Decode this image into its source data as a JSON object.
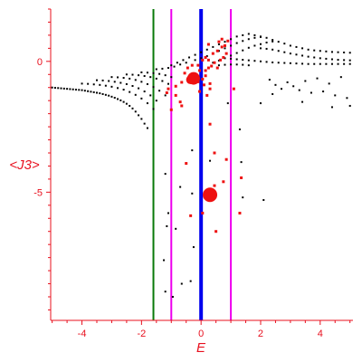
{
  "chart_data": {
    "type": "scatter",
    "title": "",
    "xlabel": "E",
    "ylabel": "<J3>",
    "xlim": [
      -5.05,
      5.1
    ],
    "ylim": [
      -9.9,
      2.0
    ],
    "xticks": [
      -4,
      -2,
      0,
      2,
      4
    ],
    "xtick_labels": [
      "-4",
      "-2",
      "0",
      "2",
      "4"
    ],
    "yticks": [
      0,
      -5
    ],
    "ytick_labels": [
      "0",
      "-5"
    ],
    "grid": false,
    "colors": {
      "axis": "#e8101e",
      "dots": "#000000",
      "red_points": "#ee1111",
      "line_green": "#0a7a0a",
      "line_magenta": "#ee00ee",
      "line_blue": "#0000ee"
    },
    "vertical_lines": [
      {
        "x": -1.6,
        "color": "#0a7a0a",
        "width": 2
      },
      {
        "x": -1.0,
        "color": "#ee00ee",
        "width": 2
      },
      {
        "x": 0.0,
        "color": "#0000ee",
        "width": 4
      },
      {
        "x": 1.0,
        "color": "#ee00ee",
        "width": 2
      }
    ],
    "series": [
      {
        "color": "#000000",
        "points": [
          [
            -5.0,
            -1.0
          ],
          [
            -4.9,
            -1.01
          ],
          [
            -4.8,
            -1.02
          ],
          [
            -4.7,
            -1.03
          ],
          [
            -4.6,
            -1.04
          ],
          [
            -4.5,
            -1.05
          ],
          [
            -4.4,
            -1.06
          ],
          [
            -4.3,
            -1.07
          ],
          [
            -4.2,
            -1.08
          ],
          [
            -4.1,
            -1.09
          ],
          [
            -4.0,
            -1.1
          ],
          [
            -3.9,
            -1.12
          ],
          [
            -3.8,
            -1.14
          ],
          [
            -3.7,
            -1.16
          ],
          [
            -3.6,
            -1.18
          ],
          [
            -3.5,
            -1.2
          ],
          [
            -3.4,
            -1.22
          ],
          [
            -3.3,
            -1.25
          ],
          [
            -3.2,
            -1.28
          ],
          [
            -3.1,
            -1.31
          ],
          [
            -3.0,
            -1.35
          ],
          [
            -2.9,
            -1.39
          ],
          [
            -2.8,
            -1.44
          ],
          [
            -2.7,
            -1.49
          ],
          [
            -2.6,
            -1.55
          ],
          [
            -2.5,
            -1.62
          ],
          [
            -2.4,
            -1.7
          ],
          [
            -2.3,
            -1.8
          ],
          [
            -2.2,
            -1.92
          ],
          [
            -2.1,
            -2.06
          ],
          [
            -2.0,
            -2.2
          ],
          [
            -1.9,
            -2.38
          ],
          [
            -1.8,
            -2.55
          ],
          [
            -4.0,
            -0.85
          ],
          [
            -3.8,
            -0.86
          ],
          [
            -3.6,
            -0.88
          ],
          [
            -3.4,
            -0.9
          ],
          [
            -3.2,
            -0.93
          ],
          [
            -3.0,
            -0.97
          ],
          [
            -2.8,
            -1.02
          ],
          [
            -2.6,
            -1.08
          ],
          [
            -2.4,
            -1.17
          ],
          [
            -2.2,
            -1.28
          ],
          [
            -2.0,
            -1.42
          ],
          [
            -1.8,
            -1.6
          ],
          [
            -1.6,
            -1.82
          ],
          [
            -3.5,
            -0.72
          ],
          [
            -3.3,
            -0.73
          ],
          [
            -3.1,
            -0.75
          ],
          [
            -2.9,
            -0.78
          ],
          [
            -2.7,
            -0.82
          ],
          [
            -2.5,
            -0.87
          ],
          [
            -2.3,
            -0.94
          ],
          [
            -2.1,
            -1.03
          ],
          [
            -1.9,
            -1.15
          ],
          [
            -1.7,
            -1.3
          ],
          [
            -1.5,
            -1.5
          ],
          [
            -3.0,
            -0.6
          ],
          [
            -2.8,
            -0.61
          ],
          [
            -2.6,
            -0.63
          ],
          [
            -2.4,
            -0.66
          ],
          [
            -2.2,
            -0.71
          ],
          [
            -2.0,
            -0.78
          ],
          [
            -1.8,
            -0.87
          ],
          [
            -1.6,
            -0.98
          ],
          [
            -1.4,
            -1.12
          ],
          [
            -1.2,
            -1.3
          ],
          [
            -2.5,
            -0.5
          ],
          [
            -2.3,
            -0.51
          ],
          [
            -2.1,
            -0.53
          ],
          [
            -1.9,
            -0.56
          ],
          [
            -1.7,
            -0.6
          ],
          [
            -1.5,
            -0.66
          ],
          [
            -1.3,
            -0.75
          ],
          [
            -1.1,
            -0.86
          ],
          [
            -2.0,
            -0.42
          ],
          [
            -1.8,
            -0.43
          ],
          [
            -1.6,
            -0.45
          ],
          [
            -1.4,
            -0.48
          ],
          [
            -1.2,
            -0.53
          ],
          [
            -1.0,
            -0.6
          ],
          [
            -1.5,
            -0.3
          ],
          [
            -1.3,
            -0.28
          ],
          [
            -1.1,
            -0.25
          ],
          [
            -0.9,
            -0.2
          ],
          [
            -0.7,
            -0.12
          ],
          [
            -0.5,
            -0.05
          ],
          [
            -1.0,
            -0.15
          ],
          [
            -0.8,
            -0.05
          ],
          [
            -0.6,
            0.05
          ],
          [
            -0.4,
            0.15
          ],
          [
            -0.2,
            0.25
          ],
          [
            0.0,
            0.35
          ],
          [
            0.2,
            0.45
          ],
          [
            0.4,
            0.55
          ],
          [
            0.6,
            0.65
          ],
          [
            0.8,
            0.75
          ],
          [
            1.0,
            0.85
          ],
          [
            -0.2,
            0.05
          ],
          [
            0.0,
            0.12
          ],
          [
            0.2,
            0.2
          ],
          [
            0.4,
            0.3
          ],
          [
            0.6,
            0.4
          ],
          [
            0.8,
            0.5
          ],
          [
            1.0,
            0.6
          ],
          [
            1.2,
            0.7
          ],
          [
            1.4,
            0.78
          ],
          [
            1.6,
            0.85
          ],
          [
            1.8,
            0.9
          ],
          [
            2.0,
            0.93
          ],
          [
            0.4,
            -0.05
          ],
          [
            0.6,
            0.03
          ],
          [
            0.8,
            0.12
          ],
          [
            1.0,
            0.22
          ],
          [
            1.2,
            0.32
          ],
          [
            1.4,
            0.42
          ],
          [
            1.6,
            0.52
          ],
          [
            1.8,
            0.6
          ],
          [
            2.0,
            0.66
          ],
          [
            2.2,
            0.72
          ],
          [
            2.4,
            0.76
          ],
          [
            1.2,
            0.95
          ],
          [
            1.4,
            1.0
          ],
          [
            1.6,
            1.05
          ],
          [
            1.8,
            1.0
          ],
          [
            2.0,
            0.95
          ],
          [
            2.2,
            0.9
          ],
          [
            2.4,
            0.82
          ],
          [
            2.6,
            0.75
          ],
          [
            2.8,
            0.68
          ],
          [
            3.0,
            0.6
          ],
          [
            3.2,
            0.55
          ],
          [
            3.4,
            0.5
          ],
          [
            3.6,
            0.45
          ],
          [
            3.8,
            0.42
          ],
          [
            4.0,
            0.4
          ],
          [
            4.2,
            0.38
          ],
          [
            4.4,
            0.36
          ],
          [
            4.6,
            0.35
          ],
          [
            4.8,
            0.34
          ],
          [
            5.0,
            0.33
          ],
          [
            2.0,
            0.5
          ],
          [
            2.2,
            0.48
          ],
          [
            2.4,
            0.45
          ],
          [
            2.6,
            0.4
          ],
          [
            2.8,
            0.35
          ],
          [
            3.0,
            0.3
          ],
          [
            3.2,
            0.26
          ],
          [
            3.4,
            0.22
          ],
          [
            3.6,
            0.18
          ],
          [
            3.8,
            0.15
          ],
          [
            4.0,
            0.12
          ],
          [
            4.2,
            0.1
          ],
          [
            4.4,
            0.08
          ],
          [
            4.6,
            0.06
          ],
          [
            4.8,
            0.05
          ],
          [
            5.0,
            0.04
          ],
          [
            1.0,
            0.1
          ],
          [
            1.2,
            0.08
          ],
          [
            1.4,
            0.06
          ],
          [
            1.6,
            0.04
          ],
          [
            1.8,
            0.02
          ],
          [
            2.0,
            0.0
          ],
          [
            2.2,
            -0.02
          ],
          [
            2.4,
            -0.04
          ],
          [
            2.6,
            -0.05
          ],
          [
            2.8,
            -0.06
          ],
          [
            3.0,
            -0.07
          ],
          [
            3.2,
            -0.08
          ],
          [
            3.4,
            -0.09
          ],
          [
            3.6,
            -0.1
          ],
          [
            3.8,
            -0.1
          ],
          [
            4.0,
            -0.1
          ],
          [
            4.2,
            -0.1
          ],
          [
            4.4,
            -0.1
          ],
          [
            4.6,
            -0.1
          ],
          [
            4.8,
            -0.1
          ],
          [
            5.0,
            -0.1
          ],
          [
            0.6,
            -0.15
          ],
          [
            0.8,
            -0.13
          ],
          [
            1.0,
            -0.12
          ],
          [
            1.2,
            -0.12
          ],
          [
            1.4,
            -0.13
          ],
          [
            1.6,
            -0.15
          ],
          [
            2.3,
            -0.7
          ],
          [
            2.5,
            -0.9
          ],
          [
            2.7,
            -1.05
          ],
          [
            2.9,
            -0.8
          ],
          [
            3.1,
            -0.95
          ],
          [
            3.3,
            -1.1
          ],
          [
            3.5,
            -0.75
          ],
          [
            3.7,
            -1.2
          ],
          [
            3.9,
            -0.65
          ],
          [
            4.1,
            -1.15
          ],
          [
            4.3,
            -0.85
          ],
          [
            4.5,
            -1.3
          ],
          [
            4.7,
            -0.6
          ],
          [
            4.9,
            -1.4
          ],
          [
            5.0,
            -1.7
          ],
          [
            4.4,
            -1.75
          ],
          [
            3.4,
            -1.55
          ],
          [
            2.4,
            -1.25
          ],
          [
            -1.2,
            -4.3
          ],
          [
            -1.1,
            -5.8
          ],
          [
            -1.15,
            -6.3
          ],
          [
            -1.25,
            -7.6
          ],
          [
            -1.2,
            -8.8
          ],
          [
            -0.85,
            -6.4
          ],
          [
            -0.95,
            -9.0
          ],
          [
            -0.7,
            -4.8
          ],
          [
            -0.65,
            -8.5
          ],
          [
            -0.35,
            -8.4
          ],
          [
            -0.3,
            -5.05
          ],
          [
            -0.3,
            -3.4
          ],
          [
            -0.25,
            -7.1
          ],
          [
            0.3,
            -3.8
          ],
          [
            0.9,
            -1.6
          ],
          [
            1.3,
            -2.6
          ],
          [
            1.35,
            -3.85
          ],
          [
            1.4,
            -5.2
          ],
          [
            2.0,
            -1.6
          ],
          [
            2.1,
            -5.3
          ]
        ]
      },
      {
        "color": "#ee1111",
        "points": [
          [
            -0.05,
            -0.35
          ],
          [
            0.15,
            -0.35
          ],
          [
            0.25,
            -0.25
          ],
          [
            0.35,
            -0.18
          ],
          [
            0.55,
            -0.25
          ],
          [
            0.45,
            -0.05
          ],
          [
            0.65,
            0.05
          ],
          [
            0.75,
            0.15
          ],
          [
            0.85,
            0.3
          ],
          [
            0.4,
            0.3
          ],
          [
            0.55,
            0.4
          ],
          [
            0.7,
            0.55
          ],
          [
            0.8,
            0.6
          ],
          [
            0.25,
            0.65
          ],
          [
            0.6,
            0.75
          ],
          [
            0.7,
            0.85
          ],
          [
            0.9,
            0.78
          ],
          [
            0.15,
            0.15
          ],
          [
            0.25,
            0.05
          ],
          [
            0.05,
            0.05
          ],
          [
            -0.1,
            -0.15
          ],
          [
            -0.45,
            -0.25
          ],
          [
            -0.3,
            -0.15
          ],
          [
            -0.55,
            -0.45
          ],
          [
            -0.25,
            -0.5
          ],
          [
            -0.15,
            -0.6
          ],
          [
            -0.35,
            -0.7
          ],
          [
            -0.1,
            -0.78
          ],
          [
            0.05,
            -0.68
          ],
          [
            0.15,
            -0.55
          ],
          [
            0.3,
            -0.85
          ],
          [
            -0.4,
            -0.75
          ],
          [
            -0.65,
            -0.8
          ],
          [
            -0.85,
            -0.95
          ],
          [
            -1.1,
            -1.05
          ],
          [
            -1.15,
            -1.2
          ],
          [
            -0.85,
            -1.3
          ],
          [
            -0.7,
            -1.55
          ],
          [
            -0.65,
            -1.7
          ],
          [
            -1.0,
            -1.85
          ],
          [
            0.1,
            -0.9
          ],
          [
            0.3,
            -1.05
          ],
          [
            -0.05,
            -1.15
          ],
          [
            0.2,
            -1.3
          ],
          [
            1.1,
            -1.05
          ],
          [
            0.3,
            -2.4
          ],
          [
            0.45,
            -3.5
          ],
          [
            -0.5,
            -3.9
          ],
          [
            0.85,
            -3.75
          ],
          [
            1.35,
            -4.45
          ],
          [
            0.75,
            -4.6
          ],
          [
            0.45,
            -4.75
          ],
          [
            -0.35,
            -5.9
          ],
          [
            0.05,
            -5.8
          ],
          [
            1.3,
            -5.8
          ],
          [
            0.5,
            -6.5
          ]
        ]
      }
    ],
    "highlight_points": [
      {
        "x": 0.3,
        "y": -5.1,
        "size": 8
      },
      {
        "x": -0.25,
        "y": -0.65,
        "size": 7
      },
      {
        "x": -0.35,
        "y": -0.7,
        "size": 5
      }
    ]
  }
}
